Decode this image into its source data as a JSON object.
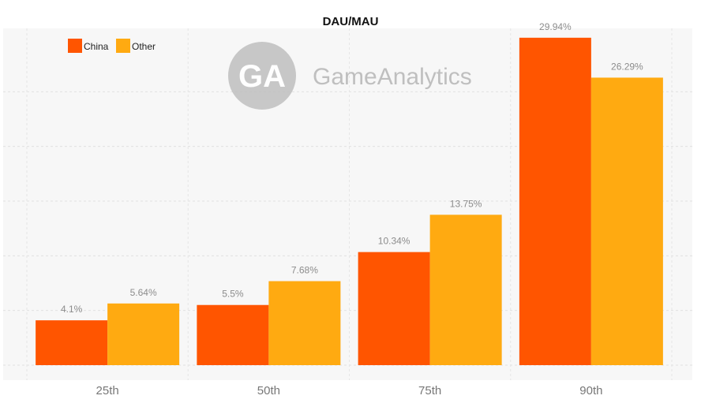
{
  "chart_data": {
    "type": "bar",
    "title": "DAU/MAU",
    "categories": [
      "25th",
      "50th",
      "75th",
      "90th"
    ],
    "series": [
      {
        "name": "China",
        "color": "#ff5500",
        "values": [
          4.1,
          5.5,
          10.34,
          29.94
        ],
        "labels": [
          "4.1%",
          "5.5%",
          "10.34%",
          "29.94%"
        ]
      },
      {
        "name": "Other",
        "color": "#ffaa11",
        "values": [
          5.64,
          7.68,
          13.75,
          26.29
        ],
        "labels": [
          "5.64%",
          "7.68%",
          "13.75%",
          "26.29%"
        ]
      }
    ],
    "xlabel": "",
    "ylabel": "",
    "ylim": [
      0,
      30
    ],
    "grid": true,
    "legend_position": "top-left"
  },
  "watermark": {
    "logo_text": "GA",
    "brand_text": "GameAnalytics"
  }
}
